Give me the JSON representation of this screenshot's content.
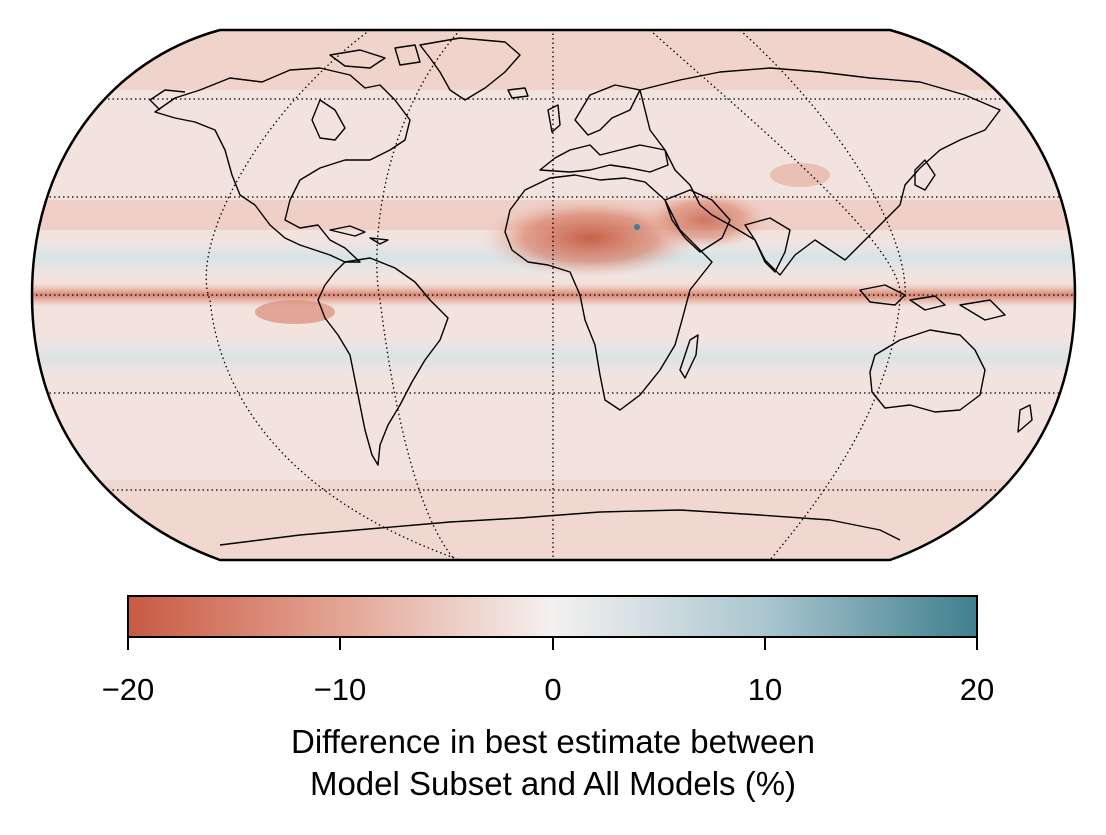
{
  "map": {
    "projection": "Robinson",
    "gridlines": "dotted",
    "coastlines": true,
    "colors": {
      "outline": "#000000",
      "ocean_base": "#f4e4e0",
      "coast": "#000000"
    }
  },
  "colorbar": {
    "vmin": -20,
    "vmax": 20,
    "ticks": [
      -20,
      -10,
      0,
      10,
      20
    ],
    "tick_labels": [
      "−20",
      "−10",
      "0",
      "10",
      "20"
    ],
    "label_line1": "Difference in best estimate between",
    "label_line2": "Model Subset and All Models (%)",
    "colors": {
      "low": "#c85a43",
      "mid": "#f2f2f2",
      "high": "#3f7f8e"
    }
  }
}
